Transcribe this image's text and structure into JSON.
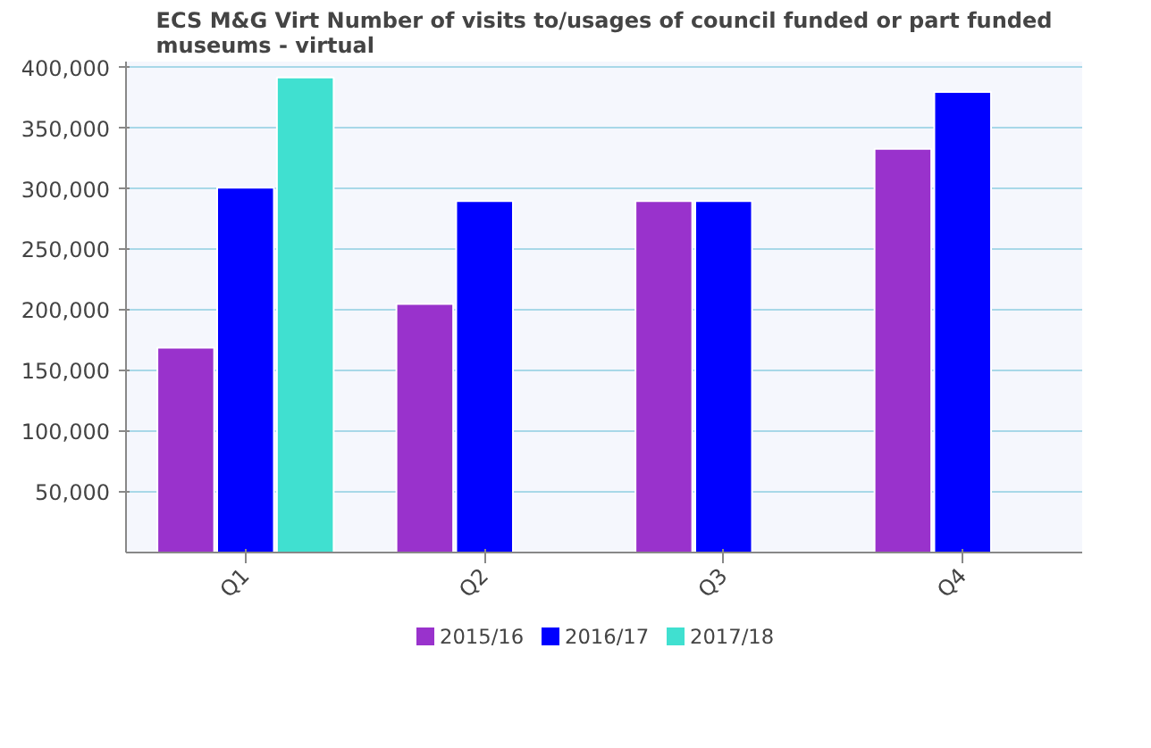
{
  "chart_data": {
    "type": "bar",
    "title": "ECS M&G Virt Number of visits to/usages of council funded or part funded museums - virtual",
    "categories": [
      "Q1",
      "Q2",
      "Q3",
      "Q4"
    ],
    "series": [
      {
        "name": "2015/16",
        "color": "#9932cc",
        "values": [
          169000,
          205000,
          290000,
          333000
        ]
      },
      {
        "name": "2016/17",
        "color": "#0000ff",
        "values": [
          301000,
          290000,
          290000,
          380000
        ]
      },
      {
        "name": "2017/18",
        "color": "#40e0d0",
        "values": [
          392000,
          null,
          null,
          null
        ]
      }
    ],
    "ylim": [
      0,
      405000
    ],
    "yticks": [
      {
        "value": 50000,
        "label": "50,000"
      },
      {
        "value": 100000,
        "label": "100,000"
      },
      {
        "value": 150000,
        "label": "150,000"
      },
      {
        "value": 200000,
        "label": "200,000"
      },
      {
        "value": 250000,
        "label": "250,000"
      },
      {
        "value": 300000,
        "label": "300,000"
      },
      {
        "value": 350000,
        "label": "350,000"
      },
      {
        "value": 400000,
        "label": "400,000"
      }
    ],
    "grid": "y",
    "legend": "bottom"
  }
}
